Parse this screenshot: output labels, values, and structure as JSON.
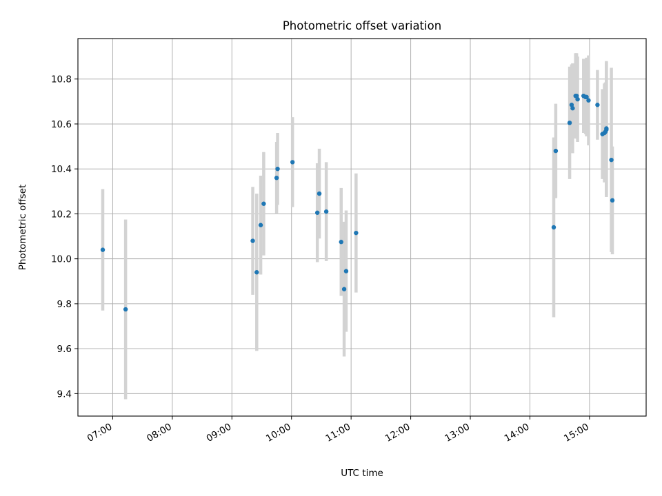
{
  "chart_data": {
    "type": "scatter",
    "title": "Photometric offset variation",
    "xlabel": "UTC time",
    "ylabel": "Photometric offset",
    "x_ticks": [
      "07:00",
      "08:00",
      "09:00",
      "10:00",
      "11:00",
      "12:00",
      "13:00",
      "14:00",
      "15:00"
    ],
    "y_ticks": [
      9.4,
      9.6,
      9.8,
      10.0,
      10.2,
      10.4,
      10.6,
      10.8
    ],
    "xlim": [
      "06:25",
      "15:57"
    ],
    "ylim": [
      9.3,
      10.98
    ],
    "grid": true,
    "legend": "none",
    "colors": {
      "marker": "#1f77b4",
      "errorbar": "#d3d3d3",
      "grid": "#b0b0b0"
    },
    "series": [
      {
        "x": [
          "06:50",
          "07:13",
          "09:21",
          "09:25",
          "09:29",
          "09:32",
          "09:45",
          "09:46",
          "10:01",
          "10:26",
          "10:28",
          "10:35",
          "10:50",
          "10:53",
          "10:55",
          "11:05",
          "14:24",
          "14:26",
          "14:40",
          "14:42",
          "14:43",
          "14:46",
          "14:47",
          "14:48",
          "14:54",
          "14:56",
          "14:57",
          "14:59",
          "15:08",
          "15:13",
          "15:15",
          "15:16",
          "15:17",
          "15:17",
          "15:22",
          "15:23"
        ],
        "y": [
          10.04,
          9.775,
          10.08,
          9.94,
          10.15,
          10.245,
          10.36,
          10.4,
          10.43,
          10.205,
          10.29,
          10.21,
          10.075,
          9.865,
          9.945,
          10.115,
          10.14,
          10.48,
          10.605,
          10.685,
          10.67,
          10.725,
          10.725,
          10.71,
          10.725,
          10.72,
          10.72,
          10.705,
          10.685,
          10.555,
          10.56,
          10.565,
          10.575,
          10.58,
          10.44,
          10.26
        ],
        "error": [
          0.27,
          0.4,
          0.24,
          0.35,
          0.22,
          0.23,
          0.16,
          0.16,
          0.2,
          0.22,
          0.2,
          0.22,
          0.24,
          0.3,
          0.27,
          0.265,
          0.4,
          0.21,
          0.25,
          0.18,
          0.2,
          0.19,
          0.19,
          0.19,
          0.165,
          0.165,
          0.175,
          0.2,
          0.155,
          0.2,
          0.22,
          0.22,
          0.3,
          0.3,
          0.41,
          0.24
        ]
      }
    ]
  }
}
